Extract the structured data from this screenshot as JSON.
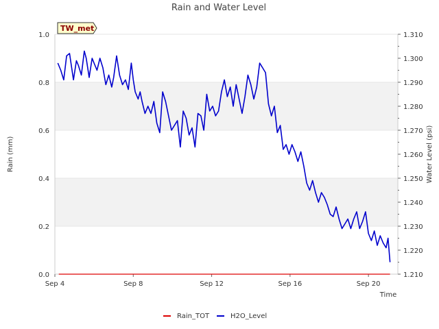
{
  "chart_data": {
    "type": "line",
    "title": "Rain and Water Level",
    "site_label": "TW_met",
    "xlabel": "Time",
    "ylabel_left": "Rain (mm)",
    "ylabel_right": "Water Level (psi)",
    "x_range_days": [
      4,
      21.5
    ],
    "x_ticks": [
      {
        "day": 4,
        "label": "Sep 4"
      },
      {
        "day": 8,
        "label": "Sep 8"
      },
      {
        "day": 12,
        "label": "Sep 12"
      },
      {
        "day": 16,
        "label": "Sep 16"
      },
      {
        "day": 20,
        "label": "Sep 20"
      }
    ],
    "ylim_left": [
      0,
      1.0
    ],
    "left_ticks": [
      "0.0",
      "0.2",
      "0.4",
      "0.6",
      "0.8",
      "1.0"
    ],
    "ylim_right": [
      1.21,
      1.31
    ],
    "right_ticks": [
      "1.210",
      "1.220",
      "1.230",
      "1.240",
      "1.250",
      "1.260",
      "1.270",
      "1.280",
      "1.290",
      "1.300",
      "1.310"
    ],
    "series": [
      {
        "name": "Rain_TOT",
        "axis": "left",
        "color": "#dd0000",
        "x": [
          4.2,
          21.1
        ],
        "y": [
          0.0,
          0.0
        ]
      },
      {
        "name": "H2O_Level",
        "axis": "right",
        "color": "#0000cc",
        "x": [
          4.15,
          4.3,
          4.45,
          4.6,
          4.75,
          4.95,
          5.1,
          5.2,
          5.35,
          5.5,
          5.6,
          5.75,
          5.9,
          6.0,
          6.15,
          6.3,
          6.45,
          6.6,
          6.75,
          6.9,
          7.0,
          7.15,
          7.3,
          7.45,
          7.6,
          7.75,
          7.9,
          8.0,
          8.1,
          8.25,
          8.35,
          8.45,
          8.6,
          8.75,
          8.9,
          9.05,
          9.2,
          9.35,
          9.5,
          9.65,
          9.8,
          9.95,
          10.1,
          10.25,
          10.4,
          10.55,
          10.7,
          10.85,
          11.0,
          11.15,
          11.3,
          11.45,
          11.6,
          11.75,
          11.9,
          12.05,
          12.2,
          12.35,
          12.5,
          12.65,
          12.8,
          12.95,
          13.1,
          13.25,
          13.4,
          13.55,
          13.7,
          13.85,
          14.0,
          14.15,
          14.3,
          14.45,
          14.6,
          14.75,
          14.9,
          15.05,
          15.2,
          15.35,
          15.5,
          15.65,
          15.8,
          15.95,
          16.1,
          16.25,
          16.4,
          16.55,
          16.7,
          16.85,
          17.0,
          17.15,
          17.3,
          17.45,
          17.6,
          17.75,
          17.9,
          18.05,
          18.2,
          18.35,
          18.5,
          18.65,
          18.8,
          18.95,
          19.1,
          19.25,
          19.4,
          19.55,
          19.7,
          19.85,
          20.0,
          20.15,
          20.3,
          20.45,
          20.6,
          20.75,
          20.9,
          21.0,
          21.1
        ],
        "y": [
          1.298,
          1.295,
          1.291,
          1.301,
          1.302,
          1.291,
          1.299,
          1.297,
          1.293,
          1.303,
          1.3,
          1.292,
          1.3,
          1.298,
          1.295,
          1.3,
          1.296,
          1.289,
          1.293,
          1.288,
          1.292,
          1.301,
          1.293,
          1.289,
          1.291,
          1.287,
          1.298,
          1.291,
          1.286,
          1.283,
          1.286,
          1.282,
          1.277,
          1.28,
          1.277,
          1.282,
          1.273,
          1.269,
          1.286,
          1.282,
          1.276,
          1.27,
          1.272,
          1.274,
          1.263,
          1.278,
          1.275,
          1.268,
          1.271,
          1.263,
          1.277,
          1.276,
          1.27,
          1.285,
          1.278,
          1.28,
          1.276,
          1.278,
          1.286,
          1.291,
          1.284,
          1.288,
          1.28,
          1.289,
          1.283,
          1.277,
          1.284,
          1.293,
          1.289,
          1.283,
          1.288,
          1.298,
          1.296,
          1.294,
          1.281,
          1.276,
          1.28,
          1.269,
          1.272,
          1.262,
          1.264,
          1.26,
          1.264,
          1.261,
          1.257,
          1.261,
          1.255,
          1.248,
          1.245,
          1.249,
          1.244,
          1.24,
          1.244,
          1.242,
          1.239,
          1.235,
          1.234,
          1.238,
          1.233,
          1.229,
          1.231,
          1.233,
          1.229,
          1.233,
          1.236,
          1.229,
          1.232,
          1.236,
          1.227,
          1.224,
          1.228,
          1.222,
          1.226,
          1.223,
          1.221,
          1.225,
          1.215
        ]
      }
    ]
  }
}
